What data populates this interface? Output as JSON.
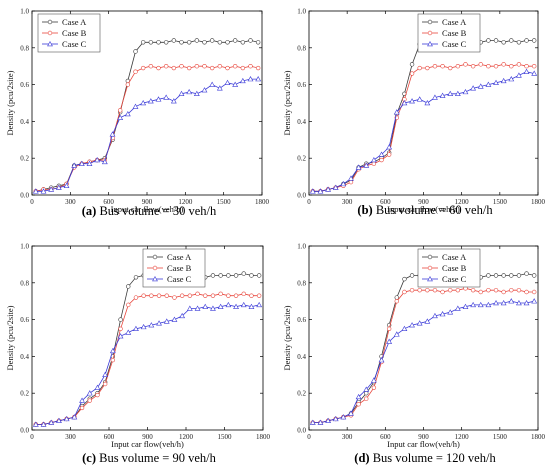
{
  "chart_data": [
    {
      "type": "line",
      "caption_letter": "(a)",
      "caption_text": " Bus volume = 30 veh/h",
      "xlabel": "Input car flow(veh/h)",
      "ylabel": "Density (pcu/2site)",
      "xlim": [
        0,
        1800
      ],
      "ylim": [
        0,
        1.0
      ],
      "xticks": [
        0,
        300,
        600,
        900,
        1200,
        1500,
        1800
      ],
      "yticks": [
        0.0,
        0.2,
        0.4,
        0.6,
        0.8,
        1.0
      ],
      "x": [
        30,
        90,
        150,
        210,
        270,
        330,
        390,
        450,
        510,
        570,
        630,
        690,
        750,
        810,
        870,
        930,
        990,
        1050,
        1110,
        1170,
        1230,
        1290,
        1350,
        1410,
        1470,
        1530,
        1590,
        1650,
        1710,
        1770
      ],
      "legend_position": "top-left",
      "series": [
        {
          "name": "Case A",
          "color": "#3a3a3a",
          "marker": "circle",
          "values": [
            0.02,
            0.03,
            0.04,
            0.05,
            0.06,
            0.16,
            0.17,
            0.18,
            0.19,
            0.2,
            0.3,
            0.45,
            0.62,
            0.78,
            0.83,
            0.83,
            0.83,
            0.83,
            0.84,
            0.83,
            0.83,
            0.84,
            0.83,
            0.84,
            0.83,
            0.83,
            0.84,
            0.83,
            0.84,
            0.83
          ]
        },
        {
          "name": "Case B",
          "color": "#e8463c",
          "marker": "circle",
          "values": [
            0.02,
            0.03,
            0.03,
            0.04,
            0.06,
            0.15,
            0.17,
            0.18,
            0.19,
            0.19,
            0.31,
            0.46,
            0.6,
            0.67,
            0.69,
            0.7,
            0.69,
            0.7,
            0.69,
            0.7,
            0.69,
            0.7,
            0.7,
            0.69,
            0.7,
            0.69,
            0.7,
            0.69,
            0.7,
            0.69
          ]
        },
        {
          "name": "Case C",
          "color": "#3b3bd8",
          "marker": "triangle",
          "values": [
            0.02,
            0.02,
            0.03,
            0.04,
            0.05,
            0.16,
            0.17,
            0.17,
            0.19,
            0.18,
            0.33,
            0.42,
            0.44,
            0.48,
            0.5,
            0.51,
            0.52,
            0.53,
            0.51,
            0.55,
            0.56,
            0.55,
            0.57,
            0.6,
            0.58,
            0.61,
            0.6,
            0.62,
            0.63,
            0.63
          ]
        }
      ]
    },
    {
      "type": "line",
      "caption_letter": "(b)",
      "caption_text": " Bus volume = 60 veh/h",
      "xlabel": "Input car flow(veh/h)",
      "ylabel": "Density (pcu/2site)",
      "xlim": [
        0,
        1800
      ],
      "ylim": [
        0,
        1.0
      ],
      "xticks": [
        0,
        300,
        600,
        900,
        1200,
        1500,
        1800
      ],
      "yticks": [
        0.0,
        0.2,
        0.4,
        0.6,
        0.8,
        1.0
      ],
      "x": [
        30,
        90,
        150,
        210,
        270,
        330,
        390,
        450,
        510,
        570,
        630,
        690,
        750,
        810,
        870,
        930,
        990,
        1050,
        1110,
        1170,
        1230,
        1290,
        1350,
        1410,
        1470,
        1530,
        1590,
        1650,
        1710,
        1770
      ],
      "legend_position": "top-right",
      "series": [
        {
          "name": "Case A",
          "color": "#3a3a3a",
          "marker": "circle",
          "values": [
            0.02,
            0.02,
            0.03,
            0.04,
            0.06,
            0.08,
            0.15,
            0.17,
            0.18,
            0.2,
            0.23,
            0.44,
            0.55,
            0.71,
            0.82,
            0.83,
            0.84,
            0.83,
            0.84,
            0.83,
            0.84,
            0.83,
            0.83,
            0.84,
            0.84,
            0.83,
            0.84,
            0.83,
            0.84,
            0.84
          ]
        },
        {
          "name": "Case B",
          "color": "#e8463c",
          "marker": "circle",
          "values": [
            0.02,
            0.02,
            0.03,
            0.04,
            0.05,
            0.07,
            0.14,
            0.16,
            0.17,
            0.19,
            0.22,
            0.42,
            0.52,
            0.66,
            0.69,
            0.69,
            0.7,
            0.7,
            0.69,
            0.7,
            0.71,
            0.7,
            0.71,
            0.7,
            0.7,
            0.71,
            0.7,
            0.71,
            0.7,
            0.7
          ]
        },
        {
          "name": "Case C",
          "color": "#3b3bd8",
          "marker": "triangle",
          "values": [
            0.02,
            0.02,
            0.03,
            0.04,
            0.06,
            0.09,
            0.15,
            0.16,
            0.19,
            0.22,
            0.26,
            0.45,
            0.5,
            0.51,
            0.52,
            0.5,
            0.53,
            0.54,
            0.55,
            0.55,
            0.56,
            0.58,
            0.59,
            0.6,
            0.61,
            0.62,
            0.63,
            0.65,
            0.67,
            0.66
          ]
        }
      ]
    },
    {
      "type": "line",
      "caption_letter": "(c)",
      "caption_text": " Bus volume = 90 veh/h",
      "xlabel": "Input car flow(veh/h)",
      "ylabel": "Density (pcu/2site)",
      "xlim": [
        0,
        1800
      ],
      "ylim": [
        0,
        1.0
      ],
      "xticks": [
        0,
        300,
        600,
        900,
        1200,
        1500,
        1800
      ],
      "yticks": [
        0.0,
        0.2,
        0.4,
        0.6,
        0.8,
        1.0
      ],
      "x": [
        30,
        90,
        150,
        210,
        270,
        330,
        390,
        450,
        510,
        570,
        630,
        690,
        750,
        810,
        870,
        930,
        990,
        1050,
        1110,
        1170,
        1230,
        1290,
        1350,
        1410,
        1470,
        1530,
        1590,
        1650,
        1710,
        1770
      ],
      "legend_position": "top-right",
      "series": [
        {
          "name": "Case A",
          "color": "#3a3a3a",
          "marker": "circle",
          "values": [
            0.03,
            0.03,
            0.04,
            0.05,
            0.06,
            0.07,
            0.13,
            0.17,
            0.2,
            0.26,
            0.4,
            0.6,
            0.78,
            0.83,
            0.84,
            0.84,
            0.84,
            0.84,
            0.83,
            0.84,
            0.84,
            0.84,
            0.83,
            0.84,
            0.84,
            0.84,
            0.84,
            0.85,
            0.84,
            0.84
          ]
        },
        {
          "name": "Case B",
          "color": "#e8463c",
          "marker": "circle",
          "values": [
            0.03,
            0.03,
            0.04,
            0.05,
            0.06,
            0.07,
            0.12,
            0.16,
            0.19,
            0.25,
            0.38,
            0.55,
            0.68,
            0.72,
            0.73,
            0.73,
            0.73,
            0.73,
            0.72,
            0.73,
            0.73,
            0.74,
            0.73,
            0.73,
            0.74,
            0.73,
            0.73,
            0.74,
            0.73,
            0.73
          ]
        },
        {
          "name": "Case C",
          "color": "#3b3bd8",
          "marker": "triangle",
          "values": [
            0.03,
            0.03,
            0.04,
            0.05,
            0.06,
            0.07,
            0.16,
            0.2,
            0.23,
            0.3,
            0.43,
            0.51,
            0.53,
            0.55,
            0.56,
            0.57,
            0.58,
            0.59,
            0.6,
            0.62,
            0.66,
            0.66,
            0.67,
            0.66,
            0.67,
            0.68,
            0.67,
            0.68,
            0.67,
            0.68
          ]
        }
      ]
    },
    {
      "type": "line",
      "caption_letter": "(d)",
      "caption_text": " Bus volume = 120 veh/h",
      "xlabel": "Input car flow(veh/h)",
      "ylabel": "Density (pcu/2site)",
      "xlim": [
        0,
        1800
      ],
      "ylim": [
        0,
        1.0
      ],
      "xticks": [
        0,
        300,
        600,
        900,
        1200,
        1500,
        1800
      ],
      "yticks": [
        0.0,
        0.2,
        0.4,
        0.6,
        0.8,
        1.0
      ],
      "x": [
        30,
        90,
        150,
        210,
        270,
        330,
        390,
        450,
        510,
        570,
        630,
        690,
        750,
        810,
        870,
        930,
        990,
        1050,
        1110,
        1170,
        1230,
        1290,
        1350,
        1410,
        1470,
        1530,
        1590,
        1650,
        1710,
        1770
      ],
      "legend_position": "top-right",
      "series": [
        {
          "name": "Case A",
          "color": "#3a3a3a",
          "marker": "circle",
          "values": [
            0.04,
            0.04,
            0.05,
            0.06,
            0.07,
            0.09,
            0.15,
            0.2,
            0.26,
            0.4,
            0.57,
            0.72,
            0.82,
            0.84,
            0.84,
            0.84,
            0.84,
            0.83,
            0.84,
            0.84,
            0.84,
            0.84,
            0.83,
            0.84,
            0.84,
            0.84,
            0.84,
            0.84,
            0.85,
            0.84
          ]
        },
        {
          "name": "Case B",
          "color": "#e8463c",
          "marker": "circle",
          "values": [
            0.04,
            0.04,
            0.05,
            0.06,
            0.07,
            0.08,
            0.14,
            0.17,
            0.23,
            0.37,
            0.55,
            0.7,
            0.75,
            0.76,
            0.76,
            0.76,
            0.76,
            0.75,
            0.76,
            0.76,
            0.77,
            0.76,
            0.75,
            0.76,
            0.76,
            0.75,
            0.76,
            0.76,
            0.75,
            0.75
          ]
        },
        {
          "name": "Case C",
          "color": "#3b3bd8",
          "marker": "triangle",
          "values": [
            0.04,
            0.04,
            0.05,
            0.06,
            0.07,
            0.09,
            0.18,
            0.22,
            0.27,
            0.38,
            0.48,
            0.52,
            0.55,
            0.57,
            0.58,
            0.59,
            0.62,
            0.63,
            0.64,
            0.66,
            0.67,
            0.68,
            0.68,
            0.68,
            0.69,
            0.69,
            0.7,
            0.69,
            0.69,
            0.7
          ]
        }
      ]
    }
  ]
}
